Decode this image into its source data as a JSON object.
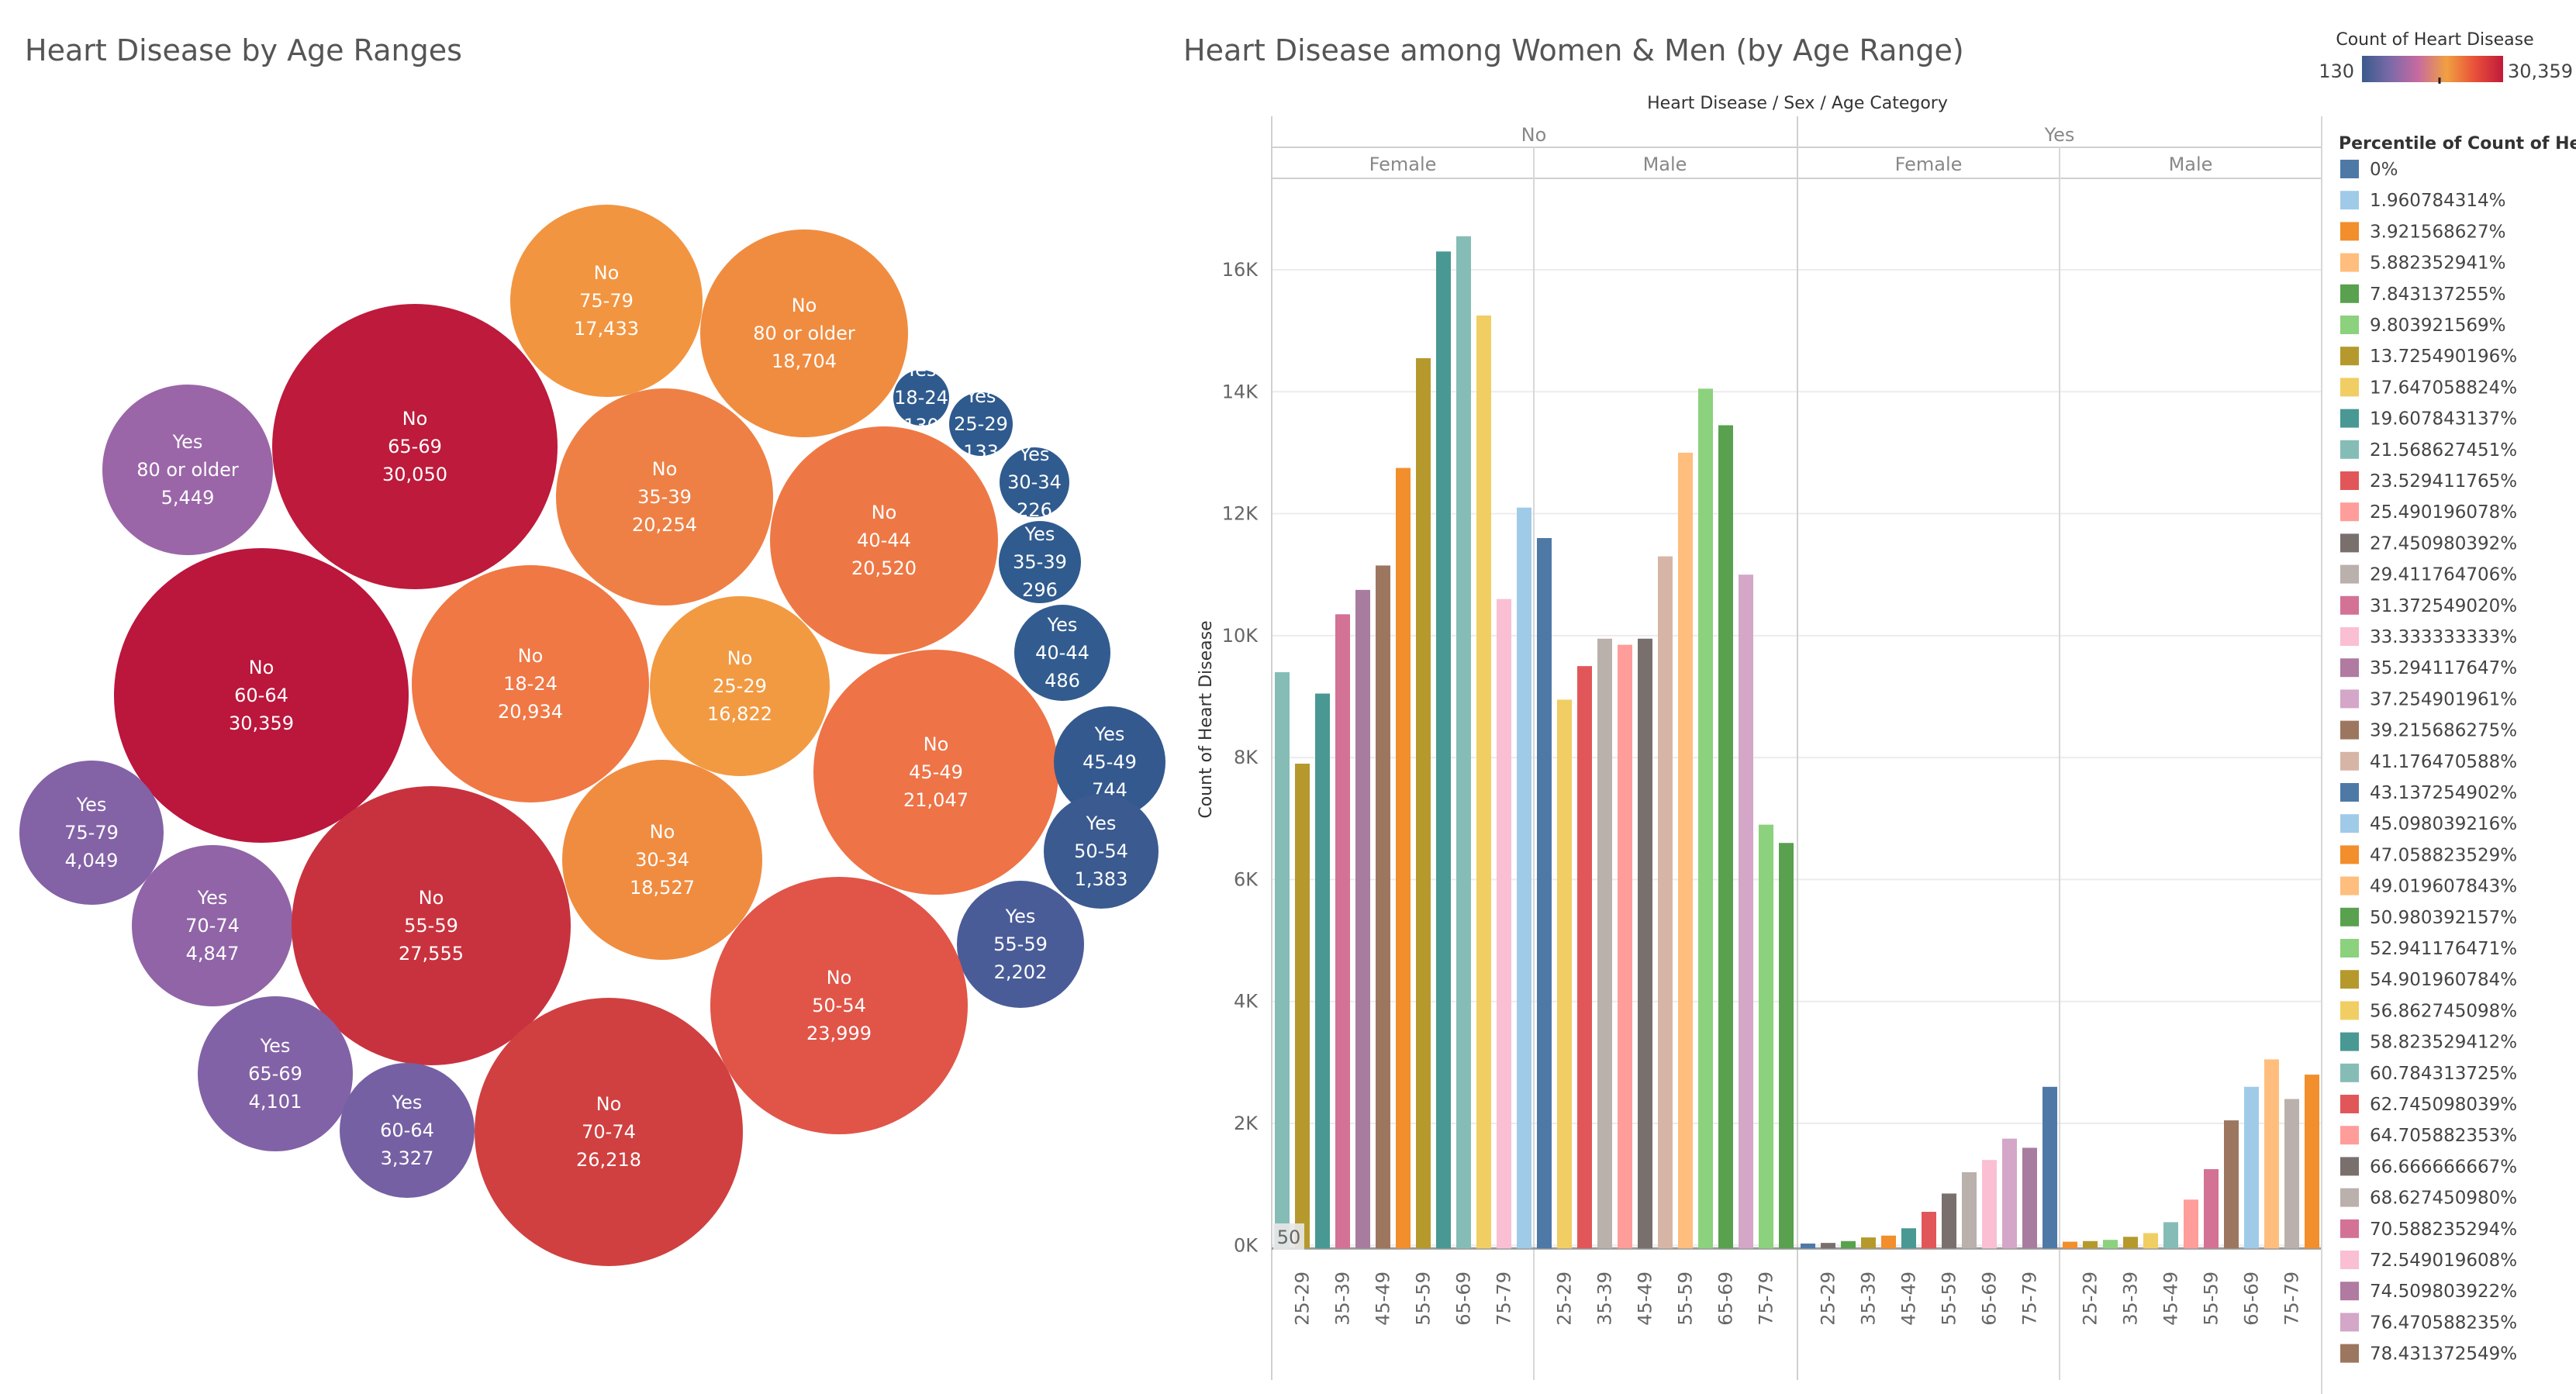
{
  "bubble_title": "Heart Disease by Age Ranges",
  "bar_title": "Heart Disease among Women & Men (by Age Range)",
  "bar_header": "Heart Disease  /  Sex  /  Age Category",
  "y_axis_label": "Count of Heart Disease",
  "partial_label": "50",
  "color_legend": {
    "title": "Count of Heart Disease",
    "min_label": "130",
    "max_label": "30,359",
    "stops": [
      "#3a5a8c",
      "#7b6aa8",
      "#c86aa0",
      "#f0a040",
      "#e8503a",
      "#c01a3a"
    ]
  },
  "chart_data": [
    {
      "type": "bubble",
      "title": "Heart Disease by Age Ranges",
      "size_range": [
        130,
        30359
      ],
      "bubbles": [
        {
          "group": "No",
          "age": "75-79",
          "value": "17,433",
          "color": "#f29540"
        },
        {
          "group": "No",
          "age": "80 or older",
          "value": "18,704",
          "color": "#f08c40"
        },
        {
          "group": "Yes",
          "age": "18-24",
          "value": "130",
          "color": "#2e5a8e"
        },
        {
          "group": "Yes",
          "age": "25-29",
          "value": "133",
          "color": "#2e5a8e"
        },
        {
          "group": "Yes",
          "age": "30-34",
          "value": "226",
          "color": "#305b8e"
        },
        {
          "group": "Yes",
          "age": "80 or older",
          "value": "5,449",
          "color": "#9b66a8"
        },
        {
          "group": "No",
          "age": "65-69",
          "value": "30,050",
          "color": "#bd1a3c"
        },
        {
          "group": "No",
          "age": "35-39",
          "value": "20,254",
          "color": "#ee8045"
        },
        {
          "group": "No",
          "age": "40-44",
          "value": "20,520",
          "color": "#ee7845"
        },
        {
          "group": "Yes",
          "age": "35-39",
          "value": "296",
          "color": "#305b8e"
        },
        {
          "group": "Yes",
          "age": "40-44",
          "value": "486",
          "color": "#325c8f"
        },
        {
          "group": "No",
          "age": "60-64",
          "value": "30,359",
          "color": "#bb163c"
        },
        {
          "group": "No",
          "age": "18-24",
          "value": "20,934",
          "color": "#ef7845"
        },
        {
          "group": "No",
          "age": "25-29",
          "value": "16,822",
          "color": "#f29a42"
        },
        {
          "group": "No",
          "age": "45-49",
          "value": "21,047",
          "color": "#ee7347"
        },
        {
          "group": "Yes",
          "age": "45-49",
          "value": "744",
          "color": "#34598f"
        },
        {
          "group": "Yes",
          "age": "75-79",
          "value": "4,049",
          "color": "#8362a6"
        },
        {
          "group": "Yes",
          "age": "70-74",
          "value": "4,847",
          "color": "#9064a7"
        },
        {
          "group": "No",
          "age": "55-59",
          "value": "27,555",
          "color": "#c8323e"
        },
        {
          "group": "No",
          "age": "30-34",
          "value": "18,527",
          "color": "#f08c40"
        },
        {
          "group": "Yes",
          "age": "50-54",
          "value": "1,383",
          "color": "#3a5a90"
        },
        {
          "group": "Yes",
          "age": "55-59",
          "value": "2,202",
          "color": "#4a5c98"
        },
        {
          "group": "No",
          "age": "50-54",
          "value": "23,999",
          "color": "#e05548"
        },
        {
          "group": "Yes",
          "age": "65-69",
          "value": "4,101",
          "color": "#8262a6"
        },
        {
          "group": "Yes",
          "age": "60-64",
          "value": "3,327",
          "color": "#7560a3"
        },
        {
          "group": "No",
          "age": "70-74",
          "value": "26,218",
          "color": "#d04040"
        }
      ]
    },
    {
      "type": "bar",
      "title": "Heart Disease among Women & Men (by Age Range)",
      "ylabel": "Count of Heart Disease",
      "ylim": [
        -200,
        17500
      ],
      "yticks": [
        {
          "v": 0,
          "label": "0K"
        },
        {
          "v": 2000,
          "label": "2K"
        },
        {
          "v": 4000,
          "label": "4K"
        },
        {
          "v": 6000,
          "label": "6K"
        },
        {
          "v": 8000,
          "label": "8K"
        },
        {
          "v": 10000,
          "label": "10K"
        },
        {
          "v": 12000,
          "label": "12K"
        },
        {
          "v": 14000,
          "label": "14K"
        },
        {
          "v": 16000,
          "label": "16K"
        }
      ],
      "x_tick_labels": [
        "25-29",
        "35-39",
        "45-49",
        "55-59",
        "65-69",
        "75-79"
      ],
      "groups": [
        {
          "name": "No",
          "panes": [
            {
              "name": "Female",
              "values": [
                9400,
                7900,
                9050,
                10350,
                10750,
                11150,
                12750,
                14550,
                16300,
                16550,
                15250,
                10600,
                12100
              ]
            },
            {
              "name": "Male",
              "values": [
                11600,
                8950,
                9500,
                9950,
                9850,
                9950,
                11300,
                13000,
                14050,
                13450,
                11000,
                6900,
                6600
              ]
            }
          ]
        },
        {
          "name": "Yes",
          "panes": [
            {
              "name": "Female",
              "values": [
                30,
                40,
                70,
                130,
                160,
                280,
                550,
                850,
                1200,
                1400,
                1750,
                1600,
                2600
              ]
            },
            {
              "name": "Male",
              "values": [
                60,
                70,
                90,
                140,
                200,
                380,
                750,
                1250,
                2050,
                2600,
                3050,
                2400,
                2800
              ]
            }
          ]
        }
      ],
      "bar_colors": [
        "#86bcb6",
        "#b6992d",
        "#499894",
        "#d37295",
        "#a87c9f",
        "#9d7660",
        "#f28e2b",
        "#b6992d",
        "#499894",
        "#86bcb6",
        "#f1ce63",
        "#fabfd2",
        "#a0cbe8"
      ],
      "bar_colors_by_pane": [
        [
          "#86bcb6",
          "#b6992d",
          "#499894",
          "#d37295",
          "#a87c9f",
          "#9d7660",
          "#f28e2b",
          "#b6992d",
          "#499894",
          "#86bcb6",
          "#f1ce63",
          "#fabfd2",
          "#a0cbe8"
        ],
        [
          "#4e79a7",
          "#f1ce63",
          "#e15759",
          "#bab0ac",
          "#ff9d9a",
          "#79706e",
          "#d7b5a6",
          "#ffbe7d",
          "#8cd17d",
          "#59a14f",
          "#d4a6c8",
          "#8cd17d",
          "#59a14f"
        ],
        [
          "#4e79a7",
          "#79706e",
          "#59a14f",
          "#b6992d",
          "#f28e2b",
          "#499894",
          "#e15759",
          "#79706e",
          "#bab0ac",
          "#fabfd2",
          "#d4a6c8",
          "#a87c9f",
          "#4e79a7"
        ],
        [
          "#f28e2b",
          "#b6992d",
          "#8cd17d",
          "#b6992d",
          "#f1ce63",
          "#86bcb6",
          "#ff9d9a",
          "#d37295",
          "#9d7660",
          "#a0cbe8",
          "#ffbe7d",
          "#bab0ac",
          "#f28e2b"
        ]
      ]
    }
  ],
  "percentile_legend": {
    "title": "Percentile of Count of He..",
    "items": [
      {
        "label": "0%",
        "color": "#4e79a7"
      },
      {
        "label": "1.960784314%",
        "color": "#a0cbe8"
      },
      {
        "label": "3.921568627%",
        "color": "#f28e2b"
      },
      {
        "label": "5.882352941%",
        "color": "#ffbe7d"
      },
      {
        "label": "7.843137255%",
        "color": "#59a14f"
      },
      {
        "label": "9.803921569%",
        "color": "#8cd17d"
      },
      {
        "label": "13.725490196%",
        "color": "#b6992d"
      },
      {
        "label": "17.647058824%",
        "color": "#f1ce63"
      },
      {
        "label": "19.607843137%",
        "color": "#499894"
      },
      {
        "label": "21.568627451%",
        "color": "#86bcb6"
      },
      {
        "label": "23.529411765%",
        "color": "#e15759"
      },
      {
        "label": "25.490196078%",
        "color": "#ff9d9a"
      },
      {
        "label": "27.450980392%",
        "color": "#79706e"
      },
      {
        "label": "29.411764706%",
        "color": "#bab0ac"
      },
      {
        "label": "31.372549020%",
        "color": "#d37295"
      },
      {
        "label": "33.333333333%",
        "color": "#fabfd2"
      },
      {
        "label": "35.294117647%",
        "color": "#b07aa1"
      },
      {
        "label": "37.254901961%",
        "color": "#d4a6c8"
      },
      {
        "label": "39.215686275%",
        "color": "#9d7660"
      },
      {
        "label": "41.176470588%",
        "color": "#d7b5a6"
      },
      {
        "label": "43.137254902%",
        "color": "#4e79a7"
      },
      {
        "label": "45.098039216%",
        "color": "#a0cbe8"
      },
      {
        "label": "47.058823529%",
        "color": "#f28e2b"
      },
      {
        "label": "49.019607843%",
        "color": "#ffbe7d"
      },
      {
        "label": "50.980392157%",
        "color": "#59a14f"
      },
      {
        "label": "52.941176471%",
        "color": "#8cd17d"
      },
      {
        "label": "54.901960784%",
        "color": "#b6992d"
      },
      {
        "label": "56.862745098%",
        "color": "#f1ce63"
      },
      {
        "label": "58.823529412%",
        "color": "#499894"
      },
      {
        "label": "60.784313725%",
        "color": "#86bcb6"
      },
      {
        "label": "62.745098039%",
        "color": "#e15759"
      },
      {
        "label": "64.705882353%",
        "color": "#ff9d9a"
      },
      {
        "label": "66.666666667%",
        "color": "#79706e"
      },
      {
        "label": "68.627450980%",
        "color": "#bab0ac"
      },
      {
        "label": "70.588235294%",
        "color": "#d37295"
      },
      {
        "label": "72.549019608%",
        "color": "#fabfd2"
      },
      {
        "label": "74.509803922%",
        "color": "#b07aa1"
      },
      {
        "label": "76.470588235%",
        "color": "#d4a6c8"
      },
      {
        "label": "78.431372549%",
        "color": "#9d7660"
      }
    ]
  }
}
